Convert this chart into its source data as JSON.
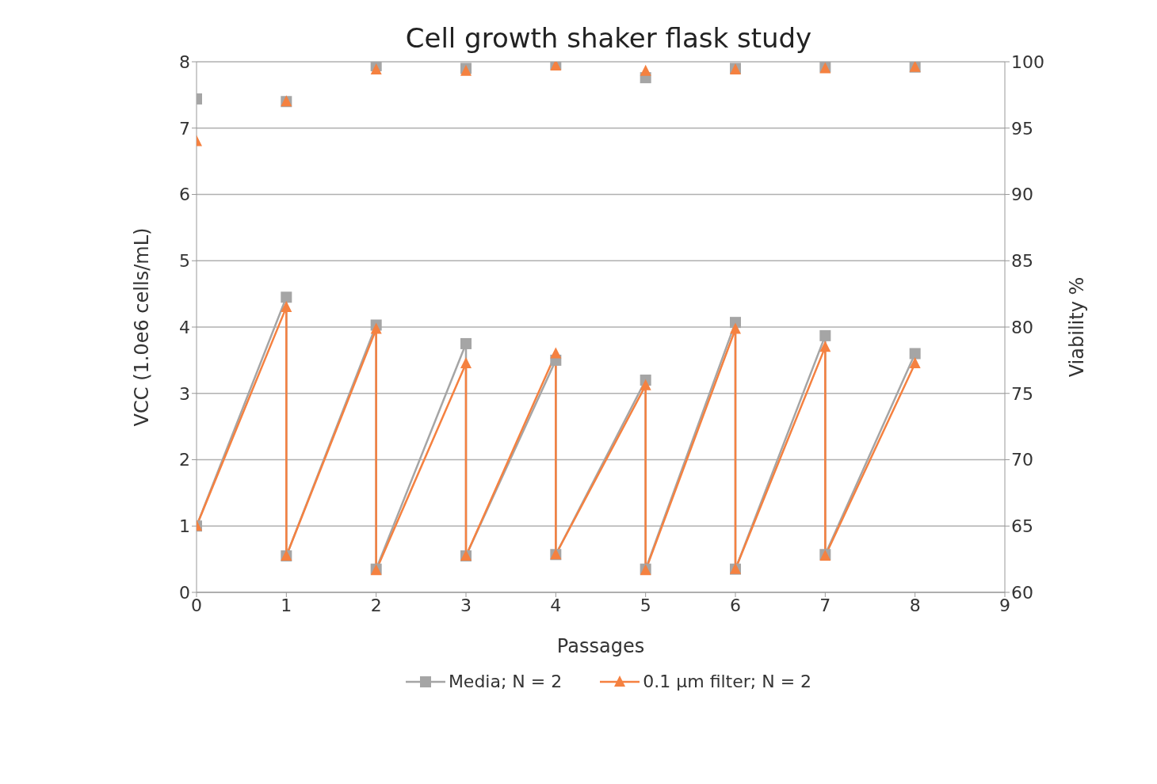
{
  "chart_data": {
    "type": "line",
    "title": "Cell growth shaker flask study",
    "xlabel": "Passages",
    "ylabel": "VCC (1.0e6 cells/mL)",
    "y2label": "Viability %",
    "xlim": [
      0,
      9
    ],
    "xticks": [
      0,
      1,
      2,
      3,
      4,
      5,
      6,
      7,
      8,
      9
    ],
    "ylim": [
      0,
      8
    ],
    "yticks": [
      0,
      1,
      2,
      3,
      4,
      5,
      6,
      7,
      8
    ],
    "y2lim": [
      60,
      100
    ],
    "y2ticks": [
      60,
      65,
      70,
      75,
      80,
      85,
      90,
      95,
      100
    ],
    "grid": "y",
    "legend": "bottom",
    "line_style": "solid",
    "series": [
      {
        "name": "Media; N = 2",
        "color": "#a5a5a5",
        "marker": "square",
        "x": [
          0,
          1,
          1,
          2,
          2,
          3,
          3,
          4,
          4,
          5,
          5,
          6,
          6,
          7,
          7,
          8
        ],
        "values": [
          1.0,
          4.45,
          0.55,
          4.03,
          0.35,
          3.75,
          0.55,
          3.5,
          0.57,
          3.2,
          0.35,
          4.07,
          0.35,
          3.87,
          0.57,
          3.6
        ]
      },
      {
        "name": "0.1 µm filter; N = 2",
        "color": "#f58140",
        "marker": "triangle",
        "x": [
          0,
          1,
          1,
          2,
          2,
          3,
          3,
          4,
          4,
          5,
          5,
          6,
          6,
          7,
          7,
          8
        ],
        "values": [
          1.0,
          4.3,
          0.55,
          3.97,
          0.33,
          3.45,
          0.55,
          3.6,
          0.57,
          3.12,
          0.33,
          3.97,
          0.35,
          3.7,
          0.55,
          3.45
        ]
      },
      {
        "color": "#a5a5a5",
        "type": "scatter",
        "marker": "square",
        "axis": "y2",
        "x": [
          0,
          1,
          2,
          3,
          4,
          5,
          6,
          7,
          8
        ],
        "values": [
          97.2,
          97.0,
          99.7,
          99.5,
          99.8,
          98.8,
          99.5,
          99.6,
          99.6
        ]
      },
      {
        "color": "#f58140",
        "type": "scatter",
        "marker": "triangle",
        "axis": "y2",
        "x": [
          0,
          1,
          2,
          3,
          4,
          5,
          6,
          7,
          8
        ],
        "values": [
          94.0,
          97.0,
          99.4,
          99.3,
          99.7,
          99.3,
          99.4,
          99.5,
          99.6
        ]
      }
    ]
  }
}
